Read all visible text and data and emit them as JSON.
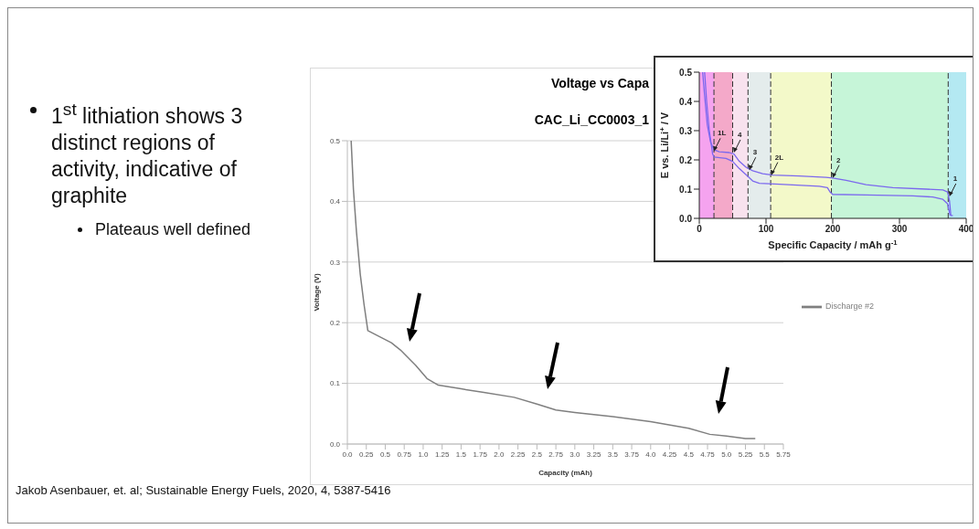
{
  "chart_data": [
    {
      "type": "line",
      "title": "Voltage vs Capa",
      "subtitle": "CAC_Li_CC0003_1",
      "xlabel": "Capacity (mAh)",
      "ylabel": "Voltage (V)",
      "xlim": [
        0,
        5.75
      ],
      "xticks": [
        {
          "value": 0,
          "label": "0.0"
        },
        0.25,
        0.5,
        0.75,
        {
          "value": 1,
          "label": "1.0"
        },
        1.25,
        1.5,
        1.75,
        {
          "value": 2,
          "label": "2.0"
        },
        2.25,
        2.5,
        2.75,
        {
          "value": 3,
          "label": "3.0"
        },
        3.25,
        3.5,
        3.75,
        {
          "value": 4,
          "label": "4.0"
        },
        4.25,
        4.5,
        4.75,
        {
          "value": 5,
          "label": "5.0"
        },
        5.25,
        5.5,
        5.75
      ],
      "ylim": [
        0,
        0.5
      ],
      "yticks": [
        {
          "value": 0,
          "label": "0.0"
        },
        0.1,
        0.2,
        0.3,
        0.4,
        0.5
      ],
      "grid": "y",
      "legend": "right",
      "marker": "none",
      "line_style": "solid",
      "x": [
        0.05,
        0.08,
        0.12,
        0.17,
        0.22,
        0.27,
        0.58,
        0.7,
        0.9,
        1.05,
        1.2,
        1.5,
        1.8,
        2.2,
        2.5,
        2.75,
        3.0,
        3.5,
        4.0,
        4.5,
        4.78,
        5.0,
        5.25,
        5.38
      ],
      "series": [
        {
          "name": "Discharge #2",
          "color": "#7f7f7f",
          "values": [
            0.5,
            0.42,
            0.35,
            0.28,
            0.23,
            0.187,
            0.167,
            0.155,
            0.13,
            0.108,
            0.097,
            0.091,
            0.085,
            0.077,
            0.066,
            0.056,
            0.052,
            0.045,
            0.037,
            0.026,
            0.016,
            0.013,
            0.009,
            0.009
          ]
        }
      ],
      "annotations": [
        "1$^{st}$ lithiation shows 3 distinct regions of activity, indicative of graphite",
        "Plateaus well defined",
        "Jakob Asenbauer, et. al; Sustainable Energy Fuels, 2020, 4, 5387-5416"
      ]
    },
    {
      "type": "line",
      "xlabel": "Specific Capacity / mAh g$^{-1}$",
      "ylabel": "E vs. Li/Li$^{+}$ / V",
      "xlim": [
        0,
        400
      ],
      "xticks": [
        0,
        100,
        200,
        300,
        400
      ],
      "ylim": [
        0,
        0.5
      ],
      "yticks": [
        {
          "value": 0,
          "label": "0.0"
        },
        0.1,
        0.2,
        0.3,
        0.4,
        0.5
      ],
      "marker": "none",
      "line_style": "solid",
      "series": [
        {
          "color": "#7b68ee",
          "x": [
            5,
            8,
            12,
            17,
            22,
            30,
            45,
            52,
            60,
            70,
            80,
            95,
            110,
            150,
            190,
            200,
            220,
            250,
            290,
            340,
            365,
            372,
            375,
            377,
            380
          ],
          "values": [
            0.5,
            0.42,
            0.32,
            0.26,
            0.235,
            0.228,
            0.225,
            0.22,
            0.195,
            0.175,
            0.163,
            0.153,
            0.148,
            0.145,
            0.14,
            0.138,
            0.13,
            0.115,
            0.105,
            0.1,
            0.097,
            0.09,
            0.06,
            0.01,
            0.01
          ]
        },
        {
          "color": "#7b68ee",
          "x": [
            8,
            11,
            15,
            20,
            22,
            40,
            50,
            60,
            72,
            80,
            90,
            120,
            180,
            192,
            196,
            200,
            250,
            320,
            350,
            365,
            372,
            376
          ],
          "values": [
            0.5,
            0.4,
            0.3,
            0.22,
            0.21,
            0.205,
            0.195,
            0.17,
            0.145,
            0.128,
            0.12,
            0.117,
            0.11,
            0.105,
            0.09,
            0.082,
            0.08,
            0.077,
            0.073,
            0.065,
            0.05,
            0.01
          ]
        }
      ],
      "bands": [
        {
          "axis": "x",
          "from": 0,
          "to": 22,
          "color": "#f5a3ef"
        },
        {
          "axis": "x",
          "from": 22,
          "to": 50,
          "color": "#f4a9c9"
        },
        {
          "axis": "x",
          "from": 50,
          "to": 73,
          "color": "#f8e2ee"
        },
        {
          "axis": "x",
          "from": 73,
          "to": 107,
          "color": "#e4ecec"
        },
        {
          "axis": "x",
          "from": 107,
          "to": 198,
          "color": "#f3f9c9"
        },
        {
          "axis": "x",
          "from": 198,
          "to": 373,
          "color": "#c6f5d8"
        },
        {
          "axis": "x",
          "from": 373,
          "to": 400,
          "color": "#b4e9f2"
        }
      ],
      "ref_lines": [
        {
          "axis": "x",
          "value": 22,
          "color": "#333333",
          "line_style": "dashed"
        },
        {
          "axis": "x",
          "value": 50,
          "color": "#333333",
          "line_style": "dashed"
        },
        {
          "axis": "x",
          "value": 73,
          "color": "#333333",
          "line_style": "dashed"
        },
        {
          "axis": "x",
          "value": 107,
          "color": "#333333",
          "line_style": "dashed"
        },
        {
          "axis": "x",
          "value": 198,
          "color": "#333333",
          "line_style": "dashed"
        },
        {
          "axis": "x",
          "value": 373,
          "color": "#333333",
          "line_style": "dashed"
        }
      ],
      "annotations": [
        {
          "text": "1L",
          "x": 22,
          "y": 0.23
        },
        {
          "text": "4",
          "x": 52,
          "y": 0.225
        },
        {
          "text": "3",
          "x": 75,
          "y": 0.165
        },
        {
          "text": "2L",
          "x": 108,
          "y": 0.148
        },
        {
          "text": "2",
          "x": 200,
          "y": 0.138
        },
        {
          "text": "1",
          "x": 375,
          "y": 0.075
        }
      ]
    }
  ]
}
